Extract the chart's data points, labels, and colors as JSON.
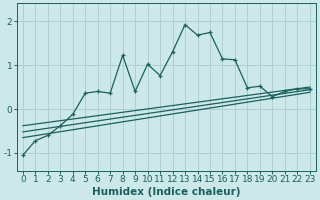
{
  "xlabel": "Humidex (Indice chaleur)",
  "xlim": [
    -0.5,
    23.5
  ],
  "ylim": [
    -1.4,
    2.4
  ],
  "yticks": [
    -1,
    0,
    1,
    2
  ],
  "xticks": [
    0,
    1,
    2,
    3,
    4,
    5,
    6,
    7,
    8,
    9,
    10,
    11,
    12,
    13,
    14,
    15,
    16,
    17,
    18,
    19,
    20,
    21,
    22,
    23
  ],
  "bg_color": "#cde8e8",
  "line_color": "#1a6060",
  "grid_color": "#b0d0d0",
  "main_line_x": [
    0,
    1,
    2,
    3,
    4,
    5,
    6,
    7,
    8,
    9,
    10,
    11,
    12,
    13,
    14,
    15,
    16,
    17,
    18,
    19,
    20,
    21,
    22,
    23
  ],
  "main_line_y": [
    -1.05,
    -0.72,
    -0.6,
    -0.38,
    -0.12,
    0.36,
    0.4,
    0.36,
    1.22,
    0.4,
    1.02,
    0.76,
    1.3,
    1.92,
    1.68,
    1.74,
    1.14,
    1.12,
    0.48,
    0.52,
    0.28,
    0.4,
    0.46,
    0.46
  ],
  "flat_line1_x": [
    0,
    23
  ],
  "flat_line1_y": [
    -0.38,
    0.5
  ],
  "flat_line2_x": [
    0,
    23
  ],
  "flat_line2_y": [
    -0.52,
    0.44
  ],
  "flat_line3_x": [
    0,
    23
  ],
  "flat_line3_y": [
    -0.65,
    0.38
  ],
  "tick_fontsize": 6.5,
  "xlabel_fontsize": 7.5
}
